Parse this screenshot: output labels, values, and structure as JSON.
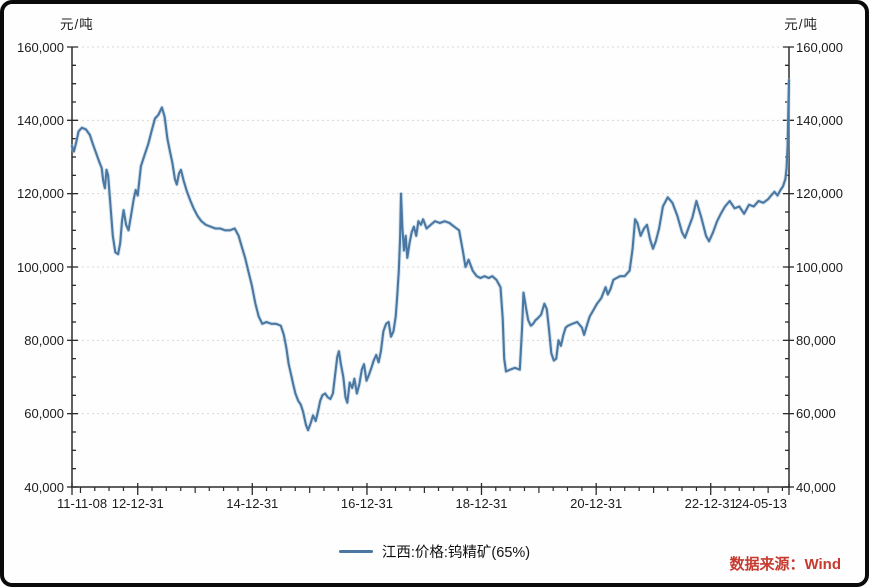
{
  "page": {
    "background_color": "#fefefe",
    "frame_border_color": "#0a0a0a"
  },
  "chart": {
    "unit_left": "元/吨",
    "unit_right": "元/吨",
    "legend_label": "江西:价格:钨精矿(65%)",
    "source_note": "数据来源：Wind",
    "colors": {
      "line": "#4a78a2",
      "line_halo": "#a9c6da",
      "grid": "#d8d8d8",
      "axis": "#2b2b2b",
      "tick_text": "#1c1c1c",
      "source_text": "#c63a30"
    }
  },
  "chart_data": {
    "type": "line",
    "title": "",
    "ylabel": "元/吨",
    "legend_position": "bottom-center",
    "grid": "horizontal-dashed",
    "ylim": [
      40000,
      160000
    ],
    "y_ticks": [
      40000,
      60000,
      80000,
      100000,
      120000,
      140000,
      160000
    ],
    "y_tick_labels": [
      "40,000",
      "60,000",
      "80,000",
      "100,000",
      "120,000",
      "140,000",
      "160,000"
    ],
    "y_minor_step": 5000,
    "x_ticks": [
      "11-11-08",
      "12-12-31",
      "14-12-31",
      "16-12-31",
      "18-12-31",
      "20-12-31",
      "22-12-31",
      "24-05-13"
    ],
    "x_range": [
      "11-11-08",
      "24-05-13"
    ],
    "series": [
      {
        "name": "江西:价格:钨精矿(65%)",
        "color": "#4a78a2",
        "unit": "元/吨",
        "points": [
          [
            "11-11-08",
            133000
          ],
          [
            "11-11-20",
            131500
          ],
          [
            "11-12-05",
            134000
          ],
          [
            "11-12-20",
            137000
          ],
          [
            "12-01-10",
            138000
          ],
          [
            "12-02-05",
            137500
          ],
          [
            "12-03-01",
            136000
          ],
          [
            "12-03-20",
            133500
          ],
          [
            "12-04-10",
            131000
          ],
          [
            "12-05-01",
            128500
          ],
          [
            "12-05-15",
            127000
          ],
          [
            "12-05-25",
            123500
          ],
          [
            "12-06-05",
            121500
          ],
          [
            "12-06-15",
            126500
          ],
          [
            "12-06-25",
            125000
          ],
          [
            "12-07-10",
            117000
          ],
          [
            "12-07-25",
            108500
          ],
          [
            "12-08-10",
            104000
          ],
          [
            "12-08-28",
            103500
          ],
          [
            "12-09-10",
            106500
          ],
          [
            "12-09-22",
            112500
          ],
          [
            "12-10-02",
            115500
          ],
          [
            "12-10-18",
            111500
          ],
          [
            "12-11-02",
            110000
          ],
          [
            "12-11-18",
            114000
          ],
          [
            "12-12-05",
            118500
          ],
          [
            "12-12-18",
            121000
          ],
          [
            "12-12-31",
            119500
          ],
          [
            "13-01-20",
            127500
          ],
          [
            "13-02-12",
            130500
          ],
          [
            "13-03-08",
            133500
          ],
          [
            "13-04-01",
            137500
          ],
          [
            "13-04-20",
            140500
          ],
          [
            "13-05-12",
            141500
          ],
          [
            "13-06-03",
            143500
          ],
          [
            "13-06-20",
            141000
          ],
          [
            "13-07-08",
            135000
          ],
          [
            "13-07-22",
            132000
          ],
          [
            "13-08-08",
            128500
          ],
          [
            "13-08-25",
            124000
          ],
          [
            "13-09-06",
            122500
          ],
          [
            "13-09-20",
            125500
          ],
          [
            "13-10-02",
            126500
          ],
          [
            "13-10-20",
            123500
          ],
          [
            "13-11-10",
            120500
          ],
          [
            "13-12-02",
            118000
          ],
          [
            "13-12-22",
            116000
          ],
          [
            "14-01-15",
            114000
          ],
          [
            "14-02-10",
            112500
          ],
          [
            "14-03-10",
            111500
          ],
          [
            "14-04-10",
            111000
          ],
          [
            "14-05-10",
            110500
          ],
          [
            "14-06-10",
            110500
          ],
          [
            "14-07-10",
            110000
          ],
          [
            "14-08-10",
            110000
          ],
          [
            "14-09-10",
            110500
          ],
          [
            "14-10-05",
            108500
          ],
          [
            "14-10-25",
            105500
          ],
          [
            "14-11-15",
            102500
          ],
          [
            "14-12-05",
            99000
          ],
          [
            "14-12-28",
            95000
          ],
          [
            "15-01-20",
            90000
          ],
          [
            "15-02-10",
            86500
          ],
          [
            "15-03-05",
            84500
          ],
          [
            "15-04-01",
            85000
          ],
          [
            "15-05-01",
            84500
          ],
          [
            "15-06-01",
            84500
          ],
          [
            "15-07-01",
            84000
          ],
          [
            "15-07-20",
            81500
          ],
          [
            "15-08-05",
            78000
          ],
          [
            "15-08-20",
            73500
          ],
          [
            "15-09-05",
            70500
          ],
          [
            "15-09-18",
            68000
          ],
          [
            "15-10-02",
            65500
          ],
          [
            "15-10-20",
            63500
          ],
          [
            "15-11-05",
            62500
          ],
          [
            "15-11-20",
            60500
          ],
          [
            "15-12-08",
            57000
          ],
          [
            "15-12-22",
            55500
          ],
          [
            "16-01-08",
            57500
          ],
          [
            "16-01-22",
            59500
          ],
          [
            "16-02-08",
            58000
          ],
          [
            "16-02-22",
            60500
          ],
          [
            "16-03-08",
            63500
          ],
          [
            "16-03-22",
            65000
          ],
          [
            "16-04-08",
            65500
          ],
          [
            "16-04-25",
            64500
          ],
          [
            "16-05-12",
            64000
          ],
          [
            "16-05-28",
            65500
          ],
          [
            "16-06-12",
            71000
          ],
          [
            "16-06-25",
            75500
          ],
          [
            "16-07-05",
            77000
          ],
          [
            "16-07-18",
            73500
          ],
          [
            "16-08-02",
            70000
          ],
          [
            "16-08-16",
            64500
          ],
          [
            "16-08-28",
            63000
          ],
          [
            "16-09-12",
            68500
          ],
          [
            "16-09-28",
            67000
          ],
          [
            "16-10-12",
            69500
          ],
          [
            "16-10-28",
            65500
          ],
          [
            "16-11-12",
            68000
          ],
          [
            "16-11-28",
            72000
          ],
          [
            "16-12-12",
            73500
          ],
          [
            "16-12-28",
            69000
          ],
          [
            "17-01-12",
            70500
          ],
          [
            "17-01-28",
            72500
          ],
          [
            "17-02-12",
            74500
          ],
          [
            "17-02-28",
            76000
          ],
          [
            "17-03-15",
            74000
          ],
          [
            "17-03-30",
            77000
          ],
          [
            "17-04-15",
            82500
          ],
          [
            "17-05-02",
            84500
          ],
          [
            "17-05-18",
            85000
          ],
          [
            "17-06-02",
            81000
          ],
          [
            "17-06-18",
            82500
          ],
          [
            "17-07-02",
            86500
          ],
          [
            "17-07-12",
            92000
          ],
          [
            "17-07-22",
            99000
          ],
          [
            "17-07-30",
            108000
          ],
          [
            "17-08-05",
            120000
          ],
          [
            "17-08-14",
            110500
          ],
          [
            "17-08-24",
            104500
          ],
          [
            "17-09-04",
            108500
          ],
          [
            "17-09-14",
            102500
          ],
          [
            "17-09-28",
            106500
          ],
          [
            "17-10-12",
            109500
          ],
          [
            "17-10-26",
            111000
          ],
          [
            "17-11-10",
            108500
          ],
          [
            "17-11-24",
            112500
          ],
          [
            "17-12-10",
            111500
          ],
          [
            "17-12-24",
            113000
          ],
          [
            "18-01-15",
            110500
          ],
          [
            "18-02-10",
            111500
          ],
          [
            "18-03-10",
            112500
          ],
          [
            "18-04-10",
            112000
          ],
          [
            "18-05-10",
            112500
          ],
          [
            "18-06-10",
            112000
          ],
          [
            "18-07-10",
            111000
          ],
          [
            "18-08-10",
            110000
          ],
          [
            "18-09-05",
            104000
          ],
          [
            "18-09-20",
            100000
          ],
          [
            "18-10-10",
            102000
          ],
          [
            "18-11-05",
            99000
          ],
          [
            "18-12-01",
            97500
          ],
          [
            "18-12-25",
            97000
          ],
          [
            "19-01-20",
            97500
          ],
          [
            "19-02-15",
            97000
          ],
          [
            "19-03-10",
            97500
          ],
          [
            "19-04-05",
            96500
          ],
          [
            "19-05-01",
            94500
          ],
          [
            "19-05-15",
            86000
          ],
          [
            "19-05-25",
            75000
          ],
          [
            "19-06-05",
            71500
          ],
          [
            "19-07-01",
            72000
          ],
          [
            "19-08-01",
            72500
          ],
          [
            "19-09-01",
            72000
          ],
          [
            "19-09-15",
            83000
          ],
          [
            "19-09-25",
            93000
          ],
          [
            "19-10-10",
            89000
          ],
          [
            "19-10-25",
            85500
          ],
          [
            "19-11-10",
            84000
          ],
          [
            "19-11-25",
            84500
          ],
          [
            "19-12-10",
            85500
          ],
          [
            "19-12-24",
            86000
          ],
          [
            "20-01-15",
            87000
          ],
          [
            "20-02-05",
            90000
          ],
          [
            "20-02-20",
            88500
          ],
          [
            "20-03-05",
            83000
          ],
          [
            "20-03-20",
            76500
          ],
          [
            "20-04-05",
            74500
          ],
          [
            "20-04-20",
            75000
          ],
          [
            "20-05-05",
            80000
          ],
          [
            "20-05-20",
            78500
          ],
          [
            "20-06-05",
            81500
          ],
          [
            "20-06-20",
            83500
          ],
          [
            "20-07-05",
            84000
          ],
          [
            "20-08-01",
            84500
          ],
          [
            "20-09-01",
            85000
          ],
          [
            "20-10-01",
            83500
          ],
          [
            "20-10-15",
            81500
          ],
          [
            "20-11-01",
            84000
          ],
          [
            "20-11-20",
            86500
          ],
          [
            "20-12-10",
            88000
          ],
          [
            "21-01-05",
            90000
          ],
          [
            "21-02-01",
            91500
          ],
          [
            "21-03-01",
            94500
          ],
          [
            "21-03-15",
            92500
          ],
          [
            "21-04-01",
            94000
          ],
          [
            "21-04-20",
            96500
          ],
          [
            "21-05-10",
            97000
          ],
          [
            "21-06-01",
            97500
          ],
          [
            "21-07-01",
            97500
          ],
          [
            "21-08-01",
            99000
          ],
          [
            "21-08-20",
            105000
          ],
          [
            "21-09-05",
            113000
          ],
          [
            "21-09-20",
            112000
          ],
          [
            "21-10-10",
            108500
          ],
          [
            "21-11-01",
            110500
          ],
          [
            "21-11-20",
            111500
          ],
          [
            "21-12-10",
            107500
          ],
          [
            "21-12-28",
            105000
          ],
          [
            "22-01-15",
            107000
          ],
          [
            "22-02-05",
            110500
          ],
          [
            "22-03-01",
            116500
          ],
          [
            "22-04-01",
            119000
          ],
          [
            "22-05-01",
            117500
          ],
          [
            "22-06-01",
            114000
          ],
          [
            "22-07-01",
            109500
          ],
          [
            "22-07-20",
            108000
          ],
          [
            "22-08-10",
            110500
          ],
          [
            "22-09-05",
            113500
          ],
          [
            "22-10-01",
            118000
          ],
          [
            "22-11-01",
            113500
          ],
          [
            "22-12-01",
            108500
          ],
          [
            "22-12-20",
            107000
          ],
          [
            "23-01-15",
            109500
          ],
          [
            "23-02-10",
            112500
          ],
          [
            "23-03-05",
            114500
          ],
          [
            "23-04-01",
            116500
          ],
          [
            "23-05-01",
            118000
          ],
          [
            "23-06-01",
            116000
          ],
          [
            "23-07-01",
            116500
          ],
          [
            "23-08-01",
            114500
          ],
          [
            "23-09-01",
            117000
          ],
          [
            "23-10-01",
            116500
          ],
          [
            "23-11-01",
            118000
          ],
          [
            "23-12-01",
            117500
          ],
          [
            "24-01-01",
            118500
          ],
          [
            "24-01-20",
            119500
          ],
          [
            "24-02-10",
            120500
          ],
          [
            "24-03-01",
            119500
          ],
          [
            "24-03-20",
            121000
          ],
          [
            "24-04-05",
            122000
          ],
          [
            "24-04-20",
            124000
          ],
          [
            "24-04-28",
            127000
          ],
          [
            "24-05-04",
            133000
          ],
          [
            "24-05-08",
            141000
          ],
          [
            "24-05-13",
            151000
          ]
        ]
      }
    ],
    "source": "数据来源：Wind"
  }
}
